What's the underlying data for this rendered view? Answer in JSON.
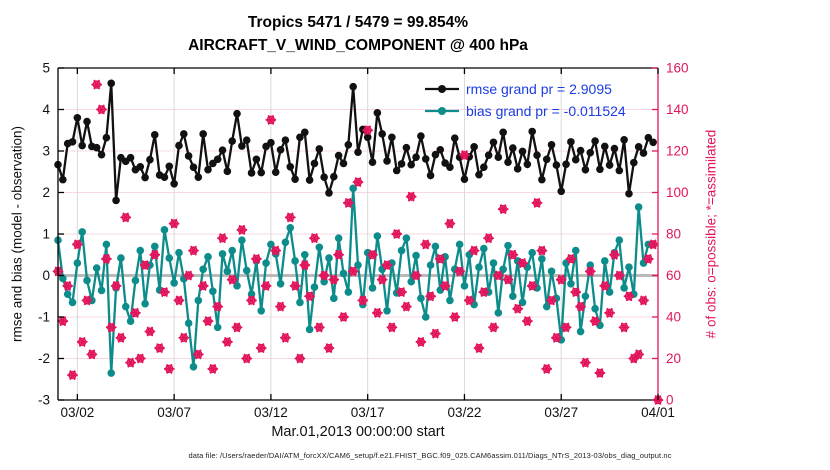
{
  "title": {
    "line1": "Tropics 5471 / 5479 = 99.854%",
    "line2": "AIRCRAFT_V_WIND_COMPONENT @ 400 hPa"
  },
  "axes": {
    "ylabel_left": "rmse and bias (model - observation)",
    "ylabel_right": "# of obs: o=possible; *=assimilated",
    "xlabel": "Mar.01,2013 00:00:00 start",
    "ylim_left": [
      -3,
      5
    ],
    "ylim_right": [
      0,
      160
    ],
    "xlim_days": [
      0,
      31
    ],
    "left_ticks": [
      5,
      4,
      3,
      2,
      1,
      0,
      -1,
      -2,
      -3
    ],
    "right_ticks": [
      0,
      20,
      40,
      60,
      80,
      100,
      120,
      140,
      160
    ],
    "x_ticks": [
      {
        "label": "03/02",
        "day": 1
      },
      {
        "label": "03/07",
        "day": 6
      },
      {
        "label": "03/12",
        "day": 11
      },
      {
        "label": "03/17",
        "day": 16
      },
      {
        "label": "03/22",
        "day": 21
      },
      {
        "label": "03/27",
        "day": 26
      },
      {
        "label": "04/01",
        "day": 31
      }
    ]
  },
  "legend": [
    {
      "label": "rmse grand pr = 2.9095",
      "color": "#111111"
    },
    {
      "label": "bias grand pr = -0.011524",
      "color": "#0d8c8c"
    }
  ],
  "footer": {
    "datafile": "data file: /Users/raeder/DAI/ATM_forcXX/CAM6_setup/f.e21.FHIST_BGC.f09_025.CAM6assim.011/Diags_NTrS_2013-03/obs_diag_output.nc"
  },
  "colors": {
    "rmse": "#111111",
    "bias": "#0d8c8c",
    "obs": "#e2155c",
    "legend_text": "#1b3de2",
    "grid_h": "#f6d8e2",
    "grid_v": "#d9d9d9",
    "zero_line": "#b9b9b9",
    "axis": "#000000"
  },
  "chart_data": {
    "type": "line",
    "x_start": "Mar 01, 2013 00:00",
    "x_step_hours": 6,
    "grid": true,
    "legend_position": "top-right-inside",
    "series": [
      {
        "name": "rmse",
        "axis": "left",
        "marker": "circle",
        "values": [
          2.67,
          2.31,
          3.18,
          3.22,
          3.8,
          3.13,
          3.71,
          3.11,
          3.08,
          2.91,
          3.32,
          4.63,
          1.81,
          2.84,
          2.75,
          2.84,
          2.55,
          2.62,
          2.36,
          2.79,
          3.39,
          2.42,
          2.37,
          2.63,
          2.21,
          3.13,
          3.41,
          2.88,
          2.61,
          2.37,
          3.41,
          2.55,
          2.7,
          2.8,
          3.02,
          2.51,
          3.24,
          3.9,
          3.12,
          3.26,
          2.47,
          2.8,
          2.48,
          3.11,
          3.2,
          2.49,
          3.03,
          3.26,
          2.62,
          2.32,
          3.33,
          3.45,
          2.3,
          2.7,
          3.05,
          2.37,
          1.99,
          2.38,
          2.89,
          2.7,
          3.15,
          4.55,
          2.97,
          3.52,
          3.33,
          2.73,
          3.92,
          3.41,
          2.76,
          3.33,
          2.53,
          2.69,
          3.08,
          2.67,
          2.85,
          3.36,
          2.81,
          2.41,
          2.91,
          3.03,
          2.71,
          2.61,
          3.31,
          2.85,
          2.32,
          2.86,
          3.1,
          2.43,
          2.61,
          2.9,
          3.21,
          2.85,
          3.45,
          2.73,
          3.07,
          2.57,
          2.99,
          2.68,
          3.47,
          2.9,
          2.31,
          2.8,
          3.15,
          2.66,
          2.03,
          2.68,
          3.22,
          2.79,
          3.01,
          2.55,
          2.96,
          3.24,
          2.56,
          3.11,
          2.66,
          3.06,
          2.53,
          3.27,
          1.97,
          2.72,
          3.1,
          2.95,
          3.32,
          3.21
        ]
      },
      {
        "name": "bias",
        "axis": "left",
        "marker": "circle",
        "values": [
          0.85,
          -0.07,
          -0.45,
          -0.65,
          0.3,
          1.05,
          -0.12,
          -0.6,
          0.18,
          -0.36,
          0.75,
          -2.35,
          -0.3,
          0.42,
          -0.75,
          -1.1,
          -0.12,
          0.6,
          -0.68,
          0.25,
          0.7,
          -0.35,
          1.1,
          0.42,
          -0.18,
          0.55,
          -0.08,
          -1.15,
          -2.2,
          -0.6,
          0.15,
          0.45,
          -0.38,
          -1.25,
          0.52,
          0.1,
          0.6,
          -0.25,
          0.85,
          0.12,
          -0.45,
          0.35,
          -0.85,
          0.3,
          0.75,
          0.52,
          -0.2,
          0.8,
          1.15,
          0.35,
          -0.65,
          0.5,
          -1.3,
          -0.28,
          0.68,
          -0.15,
          0.42,
          -0.55,
          0.9,
          0.05,
          -0.4,
          2.1,
          0.25,
          -0.7,
          0.55,
          -0.3,
          0.95,
          0.15,
          -0.85,
          0.3,
          -0.42,
          0.6,
          0.9,
          -0.15,
          0.48,
          -0.55,
          -1.0,
          0.25,
          0.7,
          -0.35,
          0.45,
          -0.6,
          0.15,
          0.75,
          -0.25,
          0.5,
          -0.7,
          0.2,
          0.65,
          -0.4,
          0.3,
          -0.9,
          0.15,
          0.72,
          -0.5,
          0.35,
          -0.65,
          0.2,
          0.55,
          -0.3,
          0.4,
          -0.75,
          0.1,
          -0.55,
          -1.55,
          0.3,
          -0.2,
          0.6,
          -1.35,
          -0.5,
          0.25,
          -0.8,
          -1.2,
          0.35,
          -0.4,
          0.55,
          0.85,
          -0.3,
          0.2,
          -0.45,
          1.65,
          0.3,
          0.75,
          0.75
        ]
      },
      {
        "name": "obs_count_assimilated",
        "axis": "right",
        "marker": "circle+asterisk",
        "values": [
          62,
          38,
          55,
          12,
          75,
          28,
          48,
          22,
          152,
          140,
          68,
          35,
          55,
          30,
          88,
          18,
          42,
          20,
          65,
          33,
          70,
          25,
          52,
          15,
          85,
          48,
          30,
          60,
          72,
          22,
          55,
          38,
          15,
          45,
          78,
          28,
          58,
          35,
          82,
          20,
          48,
          68,
          25,
          55,
          135,
          72,
          45,
          30,
          88,
          55,
          20,
          65,
          50,
          78,
          35,
          60,
          25,
          58,
          70,
          40,
          95,
          62,
          105,
          48,
          130,
          70,
          42,
          58,
          65,
          35,
          80,
          52,
          45,
          98,
          60,
          28,
          75,
          50,
          32,
          68,
          55,
          85,
          40,
          62,
          118,
          48,
          72,
          25,
          52,
          78,
          35,
          60,
          92,
          58,
          70,
          44,
          66,
          38,
          55,
          95,
          72,
          15,
          48,
          30,
          58,
          35,
          68,
          52,
          45,
          18,
          62,
          38,
          13,
          55,
          42,
          70,
          60,
          35,
          50,
          20,
          22,
          48,
          68,
          75,
          0
        ]
      }
    ]
  }
}
